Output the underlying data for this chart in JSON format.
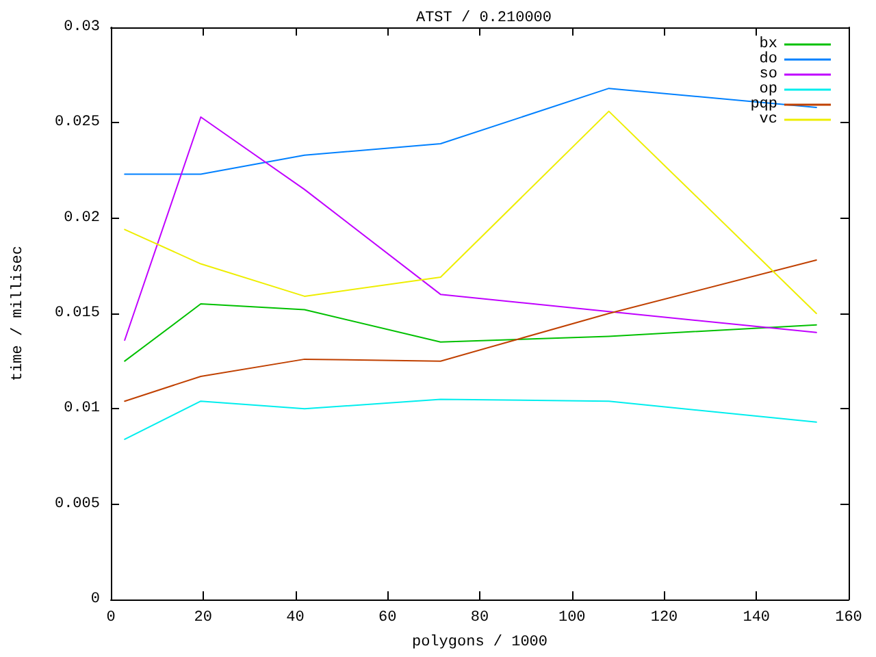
{
  "chart_data": {
    "type": "line",
    "title": "ATST / 0.210000",
    "xlabel": "polygons / 1000",
    "ylabel": "time / millisec",
    "x": [
      3,
      19.5,
      42,
      71.5,
      108,
      153
    ],
    "series": [
      {
        "name": "bx",
        "color": "#00c000",
        "values": [
          0.0125,
          0.0155,
          0.0152,
          0.0135,
          0.0138,
          0.0144
        ]
      },
      {
        "name": "do",
        "color": "#0080ff",
        "values": [
          0.0223,
          0.0223,
          0.0233,
          0.0239,
          0.0268,
          0.0258
        ]
      },
      {
        "name": "so",
        "color": "#c000ff",
        "values": [
          0.0136,
          0.0253,
          0.0215,
          0.016,
          0.0151,
          0.014
        ]
      },
      {
        "name": "op",
        "color": "#00eeee",
        "values": [
          0.0084,
          0.0104,
          0.01,
          0.0105,
          0.0104,
          0.0093
        ]
      },
      {
        "name": "pqp",
        "color": "#c04000",
        "values": [
          0.0104,
          0.0117,
          0.0126,
          0.0125,
          0.015,
          0.0178
        ]
      },
      {
        "name": "vc",
        "color": "#eeee00",
        "values": [
          0.0194,
          0.0176,
          0.0159,
          0.0169,
          0.0256,
          0.015
        ]
      }
    ],
    "xlim": [
      0,
      160
    ],
    "xticks": [
      0,
      20,
      40,
      60,
      80,
      100,
      120,
      140,
      160
    ],
    "ylim": [
      0,
      0.03
    ],
    "yticks": [
      0,
      0.005,
      0.01,
      0.015,
      0.02,
      0.025,
      0.03
    ],
    "grid": false,
    "legend": "top right"
  }
}
